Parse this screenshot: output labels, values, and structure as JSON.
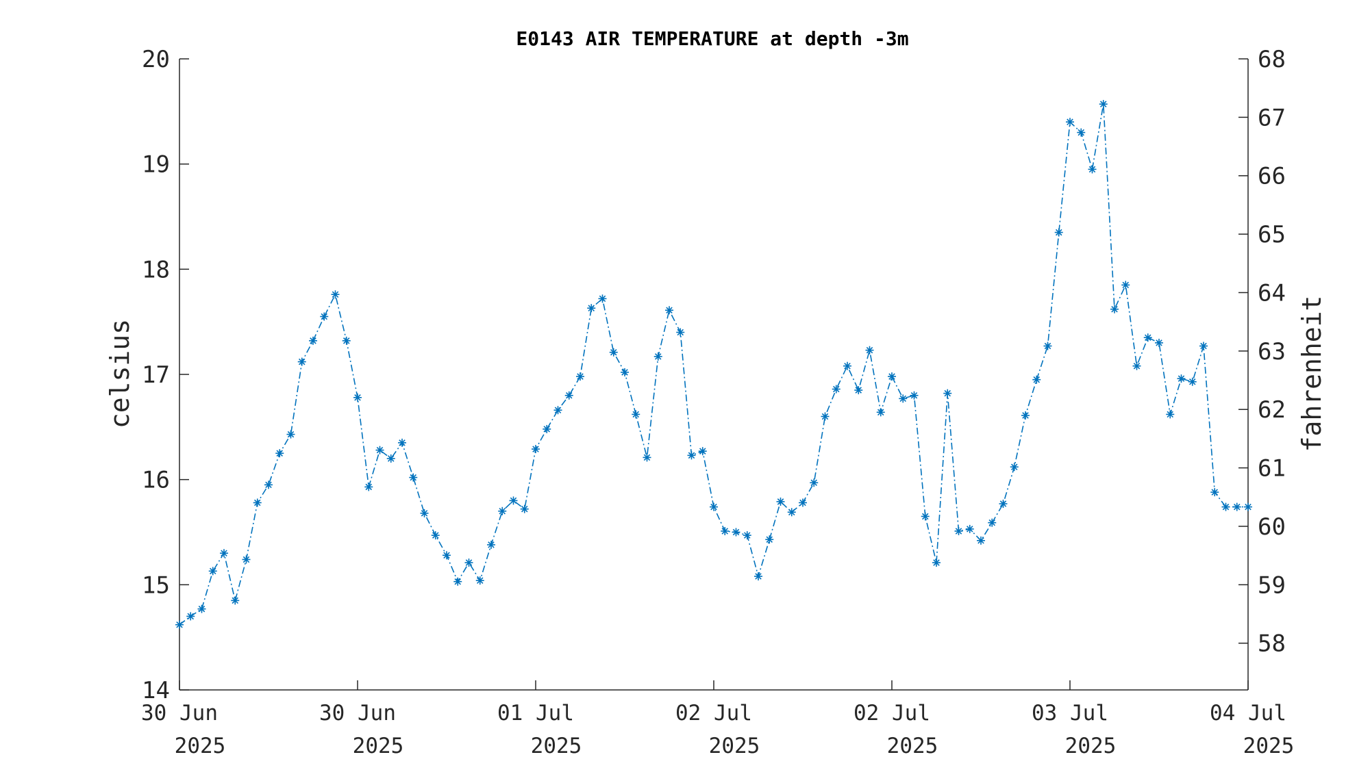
{
  "chart_data": {
    "type": "line",
    "title": "E0143 AIR TEMPERATURE at depth -3m",
    "ylabel": "celsius",
    "ylabel_right": "fahrenheit",
    "ylim": [
      14,
      20
    ],
    "yticks": [
      14,
      15,
      16,
      17,
      18,
      19,
      20
    ],
    "yticks_right": [
      58,
      59,
      60,
      61,
      62,
      63,
      64,
      65,
      66,
      67,
      68
    ],
    "x_range": [
      "2025-06-30 00:00",
      "2025-07-04 00:00"
    ],
    "xtick_labels": [
      {
        "day": "30 Jun",
        "year": "2025"
      },
      {
        "day": "30 Jun",
        "year": "2025"
      },
      {
        "day": "01 Jul",
        "year": "2025"
      },
      {
        "day": "02 Jul",
        "year": "2025"
      },
      {
        "day": "02 Jul",
        "year": "2025"
      },
      {
        "day": "03 Jul",
        "year": "2025"
      },
      {
        "day": "04 Jul",
        "year": "2025"
      }
    ],
    "grid": false,
    "line_style": "dash-dot",
    "marker": "asterisk",
    "color": "#0072BD",
    "series": [
      {
        "x": [
          "2025-06-30 00:00",
          "2025-06-30 01:00",
          "2025-06-30 02:00",
          "2025-06-30 03:00",
          "2025-06-30 04:00",
          "2025-06-30 05:00",
          "2025-06-30 06:00",
          "2025-06-30 07:00",
          "2025-06-30 08:00",
          "2025-06-30 09:00",
          "2025-06-30 10:00",
          "2025-06-30 11:00",
          "2025-06-30 12:00",
          "2025-06-30 13:00",
          "2025-06-30 14:00",
          "2025-06-30 15:00",
          "2025-06-30 16:00",
          "2025-06-30 17:00",
          "2025-06-30 18:00",
          "2025-06-30 19:00",
          "2025-06-30 20:00",
          "2025-06-30 21:00",
          "2025-06-30 22:00",
          "2025-06-30 23:00",
          "2025-07-01 00:00",
          "2025-07-01 01:00",
          "2025-07-01 02:00",
          "2025-07-01 03:00",
          "2025-07-01 04:00",
          "2025-07-01 05:00",
          "2025-07-01 06:00",
          "2025-07-01 07:00",
          "2025-07-01 08:00",
          "2025-07-01 09:00",
          "2025-07-01 10:00",
          "2025-07-01 11:00",
          "2025-07-01 12:00",
          "2025-07-01 13:00",
          "2025-07-01 14:00",
          "2025-07-01 15:00",
          "2025-07-01 16:00",
          "2025-07-01 17:00",
          "2025-07-01 18:00",
          "2025-07-01 19:00",
          "2025-07-01 20:00",
          "2025-07-01 21:00",
          "2025-07-01 22:00",
          "2025-07-01 23:00",
          "2025-07-02 00:00",
          "2025-07-02 01:00",
          "2025-07-02 02:00",
          "2025-07-02 03:00",
          "2025-07-02 04:00",
          "2025-07-02 05:00",
          "2025-07-02 06:00",
          "2025-07-02 07:00",
          "2025-07-02 08:00",
          "2025-07-02 09:00",
          "2025-07-02 10:00",
          "2025-07-02 11:00",
          "2025-07-02 12:00",
          "2025-07-02 13:00",
          "2025-07-02 14:00",
          "2025-07-02 15:00",
          "2025-07-02 16:00",
          "2025-07-02 17:00",
          "2025-07-02 18:00",
          "2025-07-02 19:00",
          "2025-07-02 20:00",
          "2025-07-02 21:00",
          "2025-07-02 22:00",
          "2025-07-02 23:00",
          "2025-07-03 00:00",
          "2025-07-03 01:00",
          "2025-07-03 02:00",
          "2025-07-03 03:00",
          "2025-07-03 04:00",
          "2025-07-03 05:00",
          "2025-07-03 06:00",
          "2025-07-03 07:00",
          "2025-07-03 08:00",
          "2025-07-03 09:00",
          "2025-07-03 10:00",
          "2025-07-03 11:00",
          "2025-07-03 12:00",
          "2025-07-03 13:00",
          "2025-07-03 14:00",
          "2025-07-03 15:00",
          "2025-07-03 16:00",
          "2025-07-03 17:00",
          "2025-07-03 18:00",
          "2025-07-03 19:00",
          "2025-07-03 20:00",
          "2025-07-03 21:00",
          "2025-07-03 22:00",
          "2025-07-03 23:00",
          "2025-07-04 00:00"
        ],
        "values": [
          14.62,
          14.7,
          14.77,
          15.13,
          15.3,
          14.85,
          15.24,
          15.78,
          15.95,
          16.25,
          16.43,
          17.12,
          17.32,
          17.55,
          17.76,
          17.32,
          16.78,
          15.93,
          16.28,
          16.2,
          16.35,
          16.02,
          15.68,
          15.47,
          15.28,
          15.03,
          15.21,
          15.04,
          15.38,
          15.7,
          15.8,
          15.72,
          16.29,
          16.48,
          16.66,
          16.8,
          16.98,
          17.63,
          17.72,
          17.21,
          17.02,
          16.62,
          16.21,
          17.17,
          17.61,
          17.4,
          16.23,
          16.27,
          15.74,
          15.51,
          15.5,
          15.47,
          15.08,
          15.43,
          15.79,
          15.69,
          15.78,
          15.97,
          16.6,
          16.86,
          17.08,
          16.85,
          17.23,
          16.64,
          16.98,
          16.77,
          16.8,
          15.65,
          15.21,
          16.82,
          15.51,
          15.53,
          15.42,
          15.59,
          15.77,
          16.12,
          16.61,
          16.95,
          17.27,
          18.35,
          19.4,
          19.3,
          18.95,
          19.57,
          17.62,
          17.85,
          17.08,
          17.35,
          17.3,
          16.62,
          16.96,
          16.93,
          17.27,
          15.88,
          15.74,
          15.74,
          15.74
        ]
      }
    ]
  }
}
